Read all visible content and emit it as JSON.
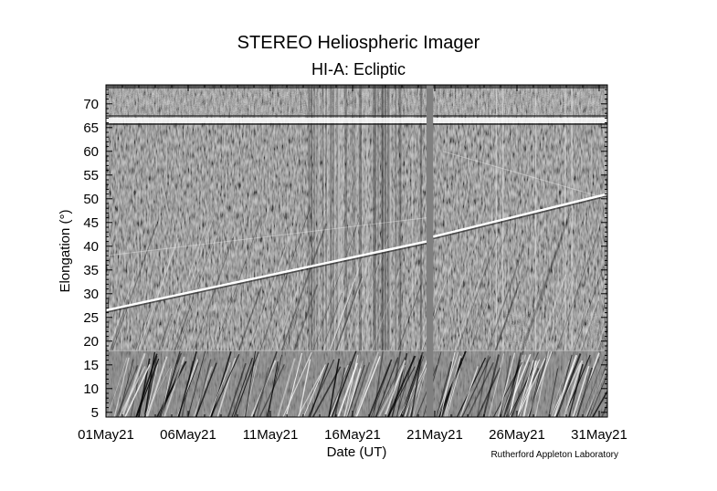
{
  "chart_data": {
    "type": "heatmap",
    "title": "STEREO Heliospheric Imager",
    "subtitle": "HI-A: Ecliptic",
    "xlabel": "Date (UT)",
    "ylabel": "Elongation (°)",
    "credit": "Rutherford Appleton Laboratory",
    "colormap": "grayscale",
    "x_tick_labels": [
      "01May21",
      "06May21",
      "11May21",
      "16May21",
      "21May21",
      "26May21",
      "31May21"
    ],
    "x_tick_days": [
      1,
      6,
      11,
      16,
      21,
      26,
      31
    ],
    "xlim_days": [
      1,
      31.5
    ],
    "y_ticks": [
      5,
      10,
      15,
      20,
      25,
      30,
      35,
      40,
      45,
      50,
      55,
      60,
      65,
      70
    ],
    "ylim": [
      4,
      74
    ],
    "data_gap_days": [
      20.5,
      20.9
    ],
    "features": {
      "bright_band_elongation": 66.5,
      "instrument_boundary_elongation": 18,
      "bright_track": {
        "segment_1": {
          "days": [
            1,
            20.5
          ],
          "elongation": [
            26.5,
            41
          ]
        },
        "segment_2": {
          "days": [
            20.9,
            31.5
          ],
          "elongation": [
            42,
            51
          ]
        }
      }
    }
  }
}
